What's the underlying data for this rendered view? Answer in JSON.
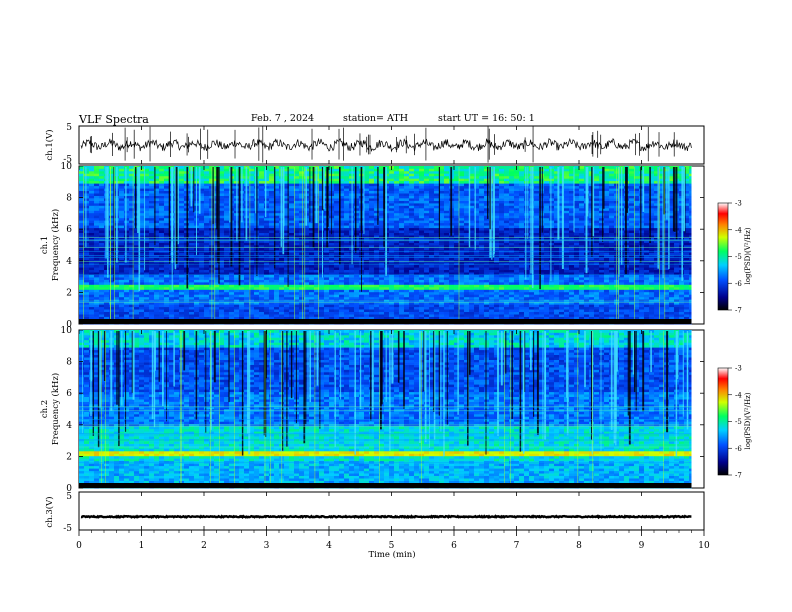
{
  "header": {
    "title": "VLF  Spectra",
    "date": "Feb. 7  , 2024",
    "station": "station= ATH",
    "start": "start  UT  =   16: 50: 1"
  },
  "chart_data": {
    "type": "heatmap",
    "xlabel": "Time  (min)",
    "xlim": [
      0,
      10
    ],
    "x_ticks": [
      "0",
      "1",
      "2",
      "3",
      "4",
      "5",
      "6",
      "7",
      "8",
      "9",
      "10"
    ],
    "ch1": {
      "ylabel": "ch.1(V)",
      "ylim": [
        -5,
        5
      ],
      "y_ticks": [
        "5",
        "-5"
      ],
      "type": "line",
      "level": 0
    },
    "ch1_spec": {
      "ylabel_top": "ch.1",
      "ylabel": "Frequency  (kHz)",
      "ylim": [
        0,
        10
      ],
      "y_ticks": [
        "0",
        "2",
        "4",
        "6",
        "8",
        "10"
      ],
      "colorbar": {
        "label": "log(PSD)(V²/Hz)",
        "range": [
          -7,
          -3
        ],
        "ticks": [
          "-3",
          "-4",
          "-5",
          "-6",
          "-7"
        ]
      }
    },
    "ch2_spec": {
      "ylabel_top": "ch.2",
      "ylabel": "Frequency  (kHz)",
      "ylim": [
        0,
        10
      ],
      "y_ticks": [
        "0",
        "2",
        "4",
        "6",
        "8",
        "10"
      ],
      "colorbar": {
        "label": "log(PSD)(V²/Hz)",
        "range": [
          -7,
          -3
        ],
        "ticks": [
          "-3",
          "-4",
          "-5",
          "-6",
          "-7"
        ]
      }
    },
    "ch3": {
      "ylabel": "ch.3(V)",
      "ylim": [
        -5,
        5
      ],
      "y_ticks": [
        "5",
        "-5"
      ],
      "type": "line",
      "level": -1.5
    },
    "data_end_min": 9.8
  }
}
